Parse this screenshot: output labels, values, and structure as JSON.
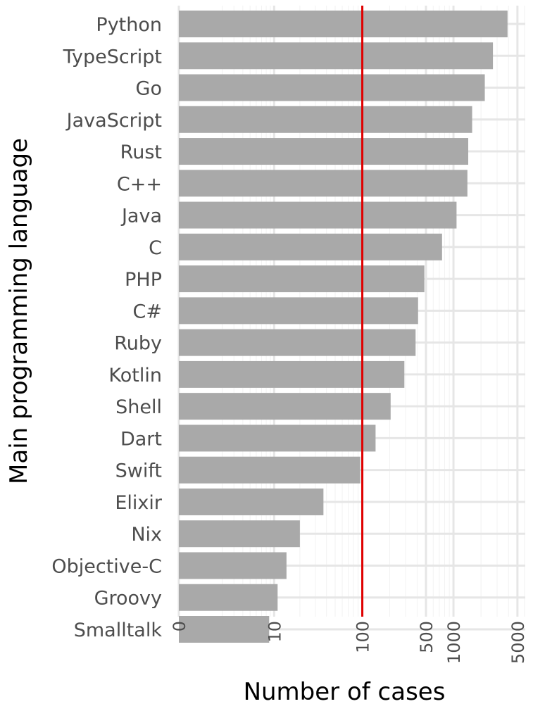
{
  "chart_data": {
    "type": "bar",
    "orientation": "horizontal",
    "x_scale": "log1p",
    "xlabel": "Number of cases",
    "ylabel": "Main programming language",
    "categories": [
      "Python",
      "TypeScript",
      "Go",
      "JavaScript",
      "Rust",
      "C++",
      "Java",
      "C",
      "PHP",
      "C#",
      "Ruby",
      "Kotlin",
      "Shell",
      "Dart",
      "Swift",
      "Elixir",
      "Nix",
      "Objective-C",
      "Groovy",
      "Smalltalk"
    ],
    "values": [
      3900,
      2700,
      2200,
      1600,
      1450,
      1420,
      1080,
      750,
      480,
      410,
      385,
      290,
      205,
      140,
      95,
      37,
      20,
      14,
      11,
      8.7
    ],
    "x_ticks": [
      {
        "value": 0,
        "label": "0"
      },
      {
        "value": 10,
        "label": "10"
      },
      {
        "value": 100,
        "label": "100"
      },
      {
        "value": 500,
        "label": "500"
      },
      {
        "value": 1000,
        "label": "1000"
      },
      {
        "value": 5000,
        "label": "5000"
      }
    ],
    "reference_line": {
      "value": 100,
      "color": "#e00000"
    },
    "bar_color": "#a9a9a9",
    "grid": true
  }
}
